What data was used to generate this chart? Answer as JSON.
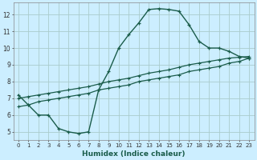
{
  "title": "",
  "xlabel": "Humidex (Indice chaleur)",
  "bg_color": "#cceeff",
  "grid_color": "#aacccc",
  "line_color": "#1a5c4a",
  "xlim": [
    -0.5,
    23.5
  ],
  "ylim": [
    4.5,
    12.7
  ],
  "xticks": [
    0,
    1,
    2,
    3,
    4,
    5,
    6,
    7,
    8,
    9,
    10,
    11,
    12,
    13,
    14,
    15,
    16,
    17,
    18,
    19,
    20,
    21,
    22,
    23
  ],
  "yticks": [
    5,
    6,
    7,
    8,
    9,
    10,
    11,
    12
  ],
  "curve1_x": [
    0,
    1,
    2,
    3,
    4,
    5,
    6,
    7,
    8,
    9,
    10,
    11,
    12,
    13,
    14,
    15,
    16,
    17,
    18,
    19,
    20,
    21,
    22,
    23
  ],
  "curve1_y": [
    7.2,
    6.6,
    6.0,
    6.0,
    5.2,
    5.0,
    4.9,
    5.0,
    7.5,
    8.6,
    10.0,
    10.8,
    11.5,
    12.3,
    12.35,
    12.3,
    12.2,
    11.4,
    10.4,
    10.0,
    10.0,
    9.8,
    9.5,
    9.4
  ],
  "curve2_x": [
    0,
    1,
    2,
    3,
    4,
    5,
    6,
    7,
    8,
    9,
    10,
    11,
    12,
    13,
    14,
    15,
    16,
    17,
    18,
    19,
    20,
    21,
    22,
    23
  ],
  "curve2_y": [
    6.5,
    6.6,
    6.8,
    6.9,
    7.0,
    7.1,
    7.2,
    7.3,
    7.5,
    7.6,
    7.7,
    7.8,
    8.0,
    8.1,
    8.2,
    8.3,
    8.4,
    8.6,
    8.7,
    8.8,
    8.9,
    9.1,
    9.2,
    9.4
  ],
  "curve3_x": [
    0,
    1,
    2,
    3,
    4,
    5,
    6,
    7,
    8,
    9,
    10,
    11,
    12,
    13,
    14,
    15,
    16,
    17,
    18,
    19,
    20,
    21,
    22,
    23
  ],
  "curve3_y": [
    7.0,
    7.1,
    7.2,
    7.3,
    7.4,
    7.5,
    7.6,
    7.7,
    7.85,
    8.0,
    8.1,
    8.2,
    8.35,
    8.5,
    8.6,
    8.7,
    8.85,
    9.0,
    9.1,
    9.2,
    9.3,
    9.4,
    9.45,
    9.5
  ]
}
